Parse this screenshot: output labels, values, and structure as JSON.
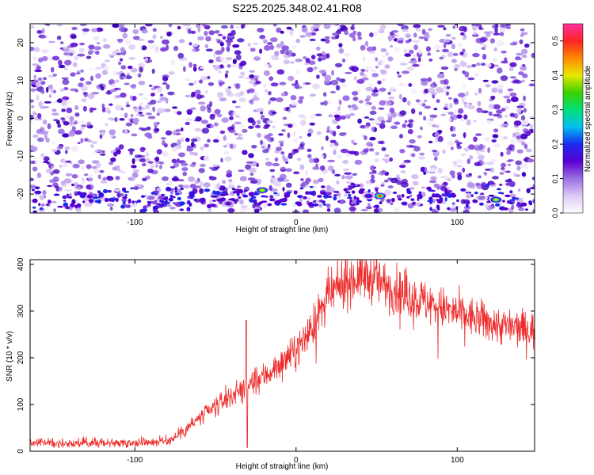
{
  "title": "S225.2025.348.02.41.R08",
  "chart_data": [
    {
      "type": "heatmap",
      "title": "S225.2025.348.02.41.R08",
      "xlabel": "Height of straight line (km)",
      "ylabel": "Frequency (Hz)",
      "xlim": [
        -165,
        148
      ],
      "ylim": [
        -25,
        25
      ],
      "xticks": [
        -100,
        0,
        100
      ],
      "xtick_labels": [
        "-100",
        "0",
        "100"
      ],
      "yticks": [
        -20,
        -10,
        0,
        10,
        20
      ],
      "ytick_labels": [
        "-20",
        "-10",
        "0",
        "10",
        "20"
      ],
      "colorbar": {
        "label": "Normalized spectral amplitude",
        "range": [
          0,
          0.55
        ],
        "ticks": [
          0,
          0.1,
          0.2,
          0.3,
          0.4,
          0.5
        ],
        "tick_labels": [
          "0.0",
          "0.1",
          "0.2",
          "0.3",
          "0.4",
          "0.5"
        ],
        "colormap": [
          "#ffffff",
          "#dcc9f4",
          "#9a6ee0",
          "#5a00d2",
          "#1a2bf0",
          "#00bff0",
          "#00e07a",
          "#3ad000",
          "#e8e800",
          "#ff8a00",
          "#ff2424",
          "#ff30a0"
        ]
      },
      "hotspots": [
        {
          "x": -21,
          "y": -19,
          "amplitude": 0.42
        },
        {
          "x": 52,
          "y": -20.5,
          "amplitude": 0.48
        },
        {
          "x": 124,
          "y": -21.5,
          "amplitude": 0.4
        },
        {
          "x": -42,
          "y": -22.5,
          "amplitude": 0.16
        },
        {
          "x": 45,
          "y": -20.5,
          "amplitude": 0.2
        },
        {
          "x": 115,
          "y": -21,
          "amplitude": 0.12
        },
        {
          "x": -90,
          "y": -21,
          "amplitude": 0.12
        }
      ]
    },
    {
      "type": "line",
      "xlabel": "Height of straight line (km)",
      "ylabel": "SNR (10 * v/v)",
      "xlim": [
        -165,
        148
      ],
      "ylim": [
        0,
        410
      ],
      "xticks": [
        -100,
        0,
        100
      ],
      "xtick_labels": [
        "-100",
        "0",
        "100"
      ],
      "yticks": [
        0,
        100,
        200,
        300,
        400
      ],
      "ytick_labels": [
        "0",
        "100",
        "200",
        "300",
        "400"
      ],
      "series": [
        {
          "name": "SNR",
          "color": "#ee2a2a",
          "x": [
            -165,
            -150,
            -130,
            -110,
            -90,
            -80,
            -75,
            -70,
            -60,
            -50,
            -40,
            -33,
            -30,
            -25,
            -20,
            -10,
            0,
            10,
            20,
            30,
            40,
            48,
            55,
            65,
            80,
            95,
            105,
            115,
            125,
            135,
            145,
            148
          ],
          "y": [
            18,
            18,
            18,
            18,
            20,
            22,
            30,
            45,
            70,
            95,
            120,
            135,
            140,
            150,
            160,
            185,
            215,
            265,
            330,
            360,
            375,
            370,
            355,
            340,
            320,
            300,
            290,
            280,
            270,
            265,
            260,
            258
          ]
        }
      ]
    }
  ]
}
